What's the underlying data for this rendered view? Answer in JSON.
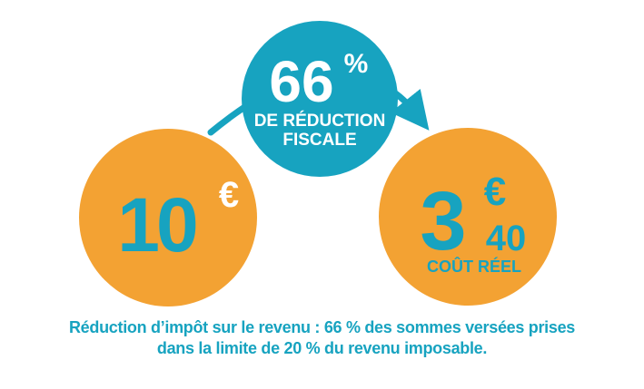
{
  "colors": {
    "orange": "#f3a233",
    "blue": "#17a3c0",
    "white": "#ffffff"
  },
  "reduction": {
    "value": "66",
    "percent_sign": "%",
    "line1": "DE RÉDUCTION",
    "line2": "FISCALE"
  },
  "donation": {
    "amount": "10",
    "currency": "€"
  },
  "real_cost": {
    "whole": "3",
    "currency": "€",
    "cents": "40",
    "label": "COÛT RÉEL"
  },
  "footnote": {
    "line1": "Réduction d’impôt sur le revenu : 66 % des sommes versées prises",
    "line2": "dans la limite de 20 % du revenu imposable."
  }
}
